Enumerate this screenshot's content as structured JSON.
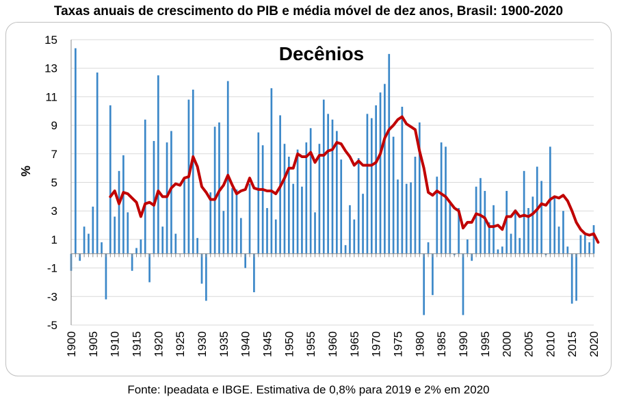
{
  "title": "Taxas anuais de crescimento do PIB e média móvel de dez anos, Brasil: 1900-2020",
  "footer": "Fonte: Ipeadata e IBGE. Estimativa de 0,8% para 2019 e 2% em 2020",
  "chart_data": {
    "type": "bar",
    "title": "Taxas anuais de crescimento do PIB e média móvel de dez anos, Brasil: 1900-2020",
    "annotation": "Decênios",
    "ylabel": "%",
    "xlabel": "",
    "ylim": [
      -5,
      15
    ],
    "yticks": [
      15,
      13,
      11,
      9,
      7,
      5,
      3,
      1,
      -1,
      -3,
      -5
    ],
    "xticks": [
      1900,
      1905,
      1910,
      1915,
      1920,
      1925,
      1930,
      1935,
      1940,
      1945,
      1950,
      1955,
      1960,
      1965,
      1970,
      1975,
      1980,
      1985,
      1990,
      1995,
      2000,
      2005,
      2010,
      2015,
      2020
    ],
    "grid": "horizontal",
    "colors": {
      "bars": "#3a87c8",
      "moving_average": "#c00000",
      "grid": "#d9d9d9"
    },
    "series": [
      {
        "type": "bar",
        "x_start": 1900,
        "values": [
          -1.2,
          14.4,
          -0.5,
          1.9,
          1.4,
          3.3,
          12.7,
          0.8,
          -3.2,
          10.4,
          2.6,
          5.8,
          6.9,
          2.9,
          -1.2,
          0.4,
          1.0,
          9.4,
          -2.0,
          7.9,
          12.5,
          1.9,
          7.8,
          8.6,
          1.4,
          0.0,
          5.2,
          10.8,
          11.5,
          1.1,
          -2.1,
          -3.3,
          4.3,
          8.9,
          9.2,
          3.0,
          12.1,
          4.6,
          4.5,
          2.5,
          -1.0,
          4.9,
          -2.7,
          8.5,
          7.6,
          3.2,
          11.6,
          2.4,
          9.7,
          7.7,
          6.8,
          4.9,
          7.3,
          4.7,
          7.8,
          8.8,
          2.9,
          7.7,
          10.8,
          9.8,
          9.4,
          8.6,
          6.6,
          0.6,
          3.4,
          2.4,
          6.7,
          4.2,
          9.8,
          9.5,
          10.4,
          11.3,
          11.9,
          14.0,
          8.2,
          5.2,
          10.3,
          4.9,
          5.0,
          6.8,
          9.2,
          -4.3,
          0.8,
          -2.9,
          5.4,
          7.8,
          7.5,
          3.5,
          -0.1,
          3.2,
          -4.3,
          1.0,
          -0.5,
          4.7,
          5.3,
          4.4,
          2.2,
          3.4,
          0.3,
          0.5,
          4.4,
          1.4,
          3.1,
          1.1,
          5.8,
          3.2,
          4.0,
          6.1,
          5.1,
          -0.1,
          7.5,
          4.0,
          1.9,
          3.0,
          0.5,
          -3.5,
          -3.3,
          1.3,
          1.3,
          0.8,
          2.0
        ]
      },
      {
        "type": "line",
        "x_start": 1909,
        "values": [
          4.0,
          4.4,
          3.5,
          4.3,
          4.2,
          3.9,
          3.6,
          2.6,
          3.5,
          3.6,
          3.4,
          4.4,
          4.0,
          4.0,
          4.6,
          4.9,
          4.8,
          5.3,
          5.4,
          6.8,
          6.1,
          4.7,
          4.3,
          3.8,
          3.8,
          4.4,
          4.8,
          5.5,
          4.8,
          4.2,
          4.4,
          4.5,
          5.3,
          4.6,
          4.5,
          4.5,
          4.4,
          4.4,
          4.2,
          4.7,
          5.3,
          6.0,
          6.0,
          7.0,
          6.8,
          6.8,
          7.1,
          6.4,
          6.9,
          6.9,
          7.2,
          7.3,
          7.8,
          7.7,
          7.2,
          6.8,
          6.2,
          6.5,
          6.2,
          6.2,
          6.2,
          6.4,
          7.0,
          8.1,
          8.7,
          9.0,
          9.4,
          9.6,
          9.1,
          8.9,
          8.7,
          7.2,
          6.0,
          4.3,
          4.1,
          4.4,
          4.2,
          4.0,
          3.6,
          3.2,
          3.0,
          1.8,
          2.2,
          2.2,
          2.8,
          2.7,
          2.5,
          1.9,
          1.9,
          2.0,
          1.7,
          2.6,
          2.6,
          3.0,
          2.6,
          2.7,
          2.6,
          2.8,
          3.1,
          3.5,
          3.4,
          3.8,
          4.0,
          3.9,
          4.1,
          3.7,
          3.0,
          2.2,
          1.7,
          1.4,
          1.3,
          1.4,
          0.8
        ]
      }
    ]
  }
}
